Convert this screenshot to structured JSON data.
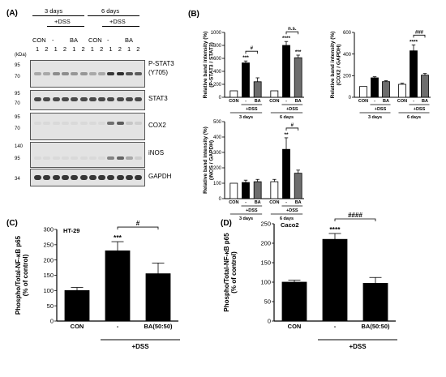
{
  "panelA": {
    "label": "(A)",
    "group_3days": "3 days",
    "group_6days": "6 days",
    "dss": "+DSS",
    "lane_groups": [
      "CON",
      "-",
      "BA",
      "CON",
      "-",
      "BA"
    ],
    "lane_nums": [
      "1",
      "2",
      "1",
      "2",
      "1",
      "2",
      "1",
      "2",
      "1",
      "2",
      "1",
      "2"
    ],
    "kda_header": "(kDa)",
    "blots": [
      {
        "name": "P-STAT3",
        "sub": "(Y705)",
        "kda": [
          "95",
          "70"
        ]
      },
      {
        "name": "STAT3",
        "sub": "",
        "kda": [
          "95",
          "70"
        ]
      },
      {
        "name": "COX2",
        "sub": "",
        "kda": [
          "95",
          "70"
        ]
      },
      {
        "name": "iNOS",
        "sub": "",
        "kda": [
          "140",
          "95"
        ]
      },
      {
        "name": "GAPDH",
        "sub": "",
        "kda": [
          "34"
        ]
      }
    ]
  },
  "panelB": {
    "label": "(B)"
  },
  "panelC": {
    "label": "(C)"
  },
  "panelD": {
    "label": "(D)"
  },
  "chart_data": [
    {
      "id": "B1",
      "type": "bar",
      "ylabel": "Relative band intensity (%)\n(P-STAT3 / STAT3)",
      "ylim": [
        0,
        1000
      ],
      "yticks": [
        0,
        200,
        400,
        600,
        800,
        1000
      ],
      "categories": [
        "CON",
        "-",
        "BA",
        "CON",
        "-",
        "BA"
      ],
      "values": [
        100,
        530,
        240,
        100,
        800,
        610
      ],
      "errors": [
        0,
        30,
        60,
        0,
        60,
        40
      ],
      "fills": [
        "#ffffff",
        "#000000",
        "#6d6d6d",
        "#ffffff",
        "#000000",
        "#6d6d6d"
      ],
      "stars": [
        "",
        "***",
        "",
        "",
        "****",
        "***"
      ],
      "brackets": [
        {
          "from": 1,
          "to": 2,
          "label": "#"
        },
        {
          "from": 4,
          "to": 5,
          "label": "n.s."
        }
      ],
      "dss_label": "+DSS",
      "groups": [
        "3 days",
        "6 days"
      ]
    },
    {
      "id": "B2",
      "type": "bar",
      "ylabel": "Relative band intensity (%)\n(COX2 / GAPDH)",
      "ylim": [
        0,
        600
      ],
      "yticks": [
        0,
        200,
        400,
        600
      ],
      "categories": [
        "CON",
        "-",
        "BA",
        "CON",
        "-",
        "BA"
      ],
      "values": [
        100,
        180,
        145,
        120,
        430,
        205
      ],
      "errors": [
        0,
        10,
        8,
        10,
        55,
        15
      ],
      "fills": [
        "#ffffff",
        "#000000",
        "#6d6d6d",
        "#ffffff",
        "#000000",
        "#6d6d6d"
      ],
      "stars": [
        "",
        "",
        "",
        "",
        "****",
        ""
      ],
      "brackets": [
        {
          "from": 4,
          "to": 5,
          "label": "###"
        }
      ],
      "dss_label": "+DSS",
      "groups": [
        "3 days",
        "6 days"
      ]
    },
    {
      "id": "B3",
      "type": "bar",
      "ylabel": "Relative band intensity (%)\n(iNOS / GAPDH)",
      "ylim": [
        0,
        500
      ],
      "yticks": [
        0,
        100,
        200,
        300,
        400,
        500
      ],
      "categories": [
        "CON",
        "-",
        "BA",
        "CON",
        "-",
        "BA"
      ],
      "values": [
        100,
        105,
        110,
        110,
        320,
        165
      ],
      "errors": [
        0,
        15,
        15,
        15,
        75,
        20
      ],
      "fills": [
        "#ffffff",
        "#000000",
        "#6d6d6d",
        "#ffffff",
        "#000000",
        "#6d6d6d"
      ],
      "stars": [
        "",
        "",
        "",
        "",
        "**",
        ""
      ],
      "brackets": [
        {
          "from": 4,
          "to": 5,
          "label": "#"
        }
      ],
      "dss_label": "+DSS",
      "groups": [
        "3 days",
        "6 days"
      ]
    },
    {
      "id": "C",
      "type": "bar",
      "title": "HT-29",
      "ylabel": "Phospho/Total-NF-κB p65\n(% of control)",
      "ylim": [
        0,
        300
      ],
      "yticks": [
        0,
        50,
        100,
        150,
        200,
        250,
        300
      ],
      "categories": [
        "CON",
        "-",
        "BA(50:50)"
      ],
      "values": [
        100,
        230,
        155
      ],
      "errors": [
        10,
        30,
        35
      ],
      "fills": [
        "#000000",
        "#000000",
        "#000000"
      ],
      "stars": [
        "",
        "***",
        ""
      ],
      "brackets": [
        {
          "from": 1,
          "to": 2,
          "label": "#"
        }
      ],
      "dss_label": "+DSS"
    },
    {
      "id": "D",
      "type": "bar",
      "title": "Caco2",
      "ylabel": "Phospho/Total-NF-κB p65\n(% of control)",
      "ylim": [
        0,
        250
      ],
      "yticks": [
        0,
        50,
        100,
        150,
        200,
        250
      ],
      "categories": [
        "CON",
        "-",
        "BA(50:50)"
      ],
      "values": [
        100,
        210,
        97
      ],
      "errors": [
        5,
        15,
        15
      ],
      "fills": [
        "#000000",
        "#000000",
        "#000000"
      ],
      "stars": [
        "",
        "****",
        ""
      ],
      "brackets": [
        {
          "from": 1,
          "to": 2,
          "label": "####"
        }
      ],
      "dss_label": "+DSS"
    }
  ]
}
